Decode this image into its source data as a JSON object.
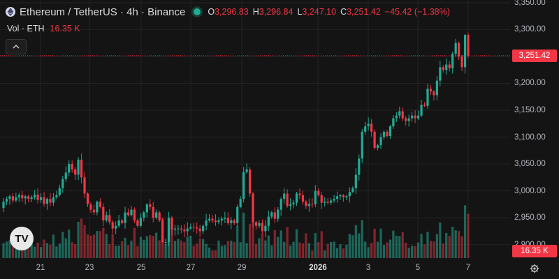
{
  "header": {
    "symbol_title": "Ethereum / TetherUS · 4h · Binance",
    "ohlc": [
      {
        "key": "O",
        "value": "3,296.83"
      },
      {
        "key": "H",
        "value": "3,296.84"
      },
      {
        "key": "L",
        "value": "3,247.10"
      },
      {
        "key": "C",
        "value": "3,251.42"
      }
    ],
    "change": "−45.42 (−1.38%)"
  },
  "volume_legend": {
    "label": "Vol · ETH",
    "value": "16.35 K"
  },
  "colors": {
    "up": "#22ab94",
    "down": "#f23645",
    "background": "#141414",
    "grid": "#232323"
  },
  "icons": {
    "symbol": "ethereum-icon",
    "status": "market-status-dot",
    "collapse": "chevron-up-icon",
    "logo": "tradingview-logo",
    "settings": "gear-icon"
  },
  "logo_text": "TV",
  "price_axis": {
    "ticks": [
      "3,350.00",
      "3,300.00",
      "3,250.00",
      "3,200.00",
      "3,150.00",
      "3,100.00",
      "3,050.00",
      "3,000.00",
      "2,950.00",
      "2,900.00"
    ],
    "current_price": "3,251.42",
    "current_volume": "16.35 K"
  },
  "time_axis": {
    "labels": [
      "21",
      "23",
      "25",
      "27",
      "29",
      "2026",
      "3",
      "5",
      "7"
    ]
  },
  "chart_data": {
    "type": "candlestick",
    "symbol": "ETHUSDT",
    "interval": "4h",
    "ylim": [
      2875,
      3355
    ],
    "last_price": 3251.42,
    "candles_close": [
      2980,
      2985,
      2990,
      2982,
      2988,
      2992,
      2986,
      2990,
      2985,
      2988,
      2993,
      2983,
      2988,
      2976,
      2985,
      2978,
      2988,
      2992,
      3005,
      3022,
      3034,
      3050,
      3040,
      3030,
      3058,
      3025,
      2995,
      2975,
      2965,
      2960,
      2980,
      2970,
      2945,
      2955,
      2942,
      2930,
      2935,
      2945,
      2940,
      2960,
      2955,
      2965,
      2945,
      2935,
      2950,
      2960,
      2975,
      2970,
      2950,
      2960,
      2945,
      2905,
      2905,
      2950,
      2928,
      2930,
      2930,
      2928,
      2925,
      2930,
      2933,
      2932,
      2930,
      2925,
      2935,
      2945,
      2948,
      2945,
      2942,
      2945,
      2948,
      2950,
      2940,
      2945,
      2940,
      2970,
      2985,
      3035,
      3040,
      2995,
      2942,
      2935,
      2940,
      2925,
      2935,
      2952,
      2960,
      2948,
      2965,
      2985,
      2995,
      2972,
      2975,
      2978,
      2995,
      2992,
      2980,
      2972,
      2976,
      2975,
      3000,
      2992,
      2978,
      2980,
      2978,
      2982,
      2985,
      2990,
      2992,
      2988,
      2990,
      2998,
      3005,
      3030,
      3060,
      3110,
      3120,
      3125,
      3110,
      3080,
      3085,
      3100,
      3110,
      3102,
      3120,
      3135,
      3140,
      3148,
      3135,
      3130,
      3135,
      3140,
      3135,
      3140,
      3160,
      3158,
      3190,
      3185,
      3178,
      3205,
      3230,
      3225,
      3235,
      3228,
      3255,
      3275,
      3250,
      3230,
      3290,
      3251.42
    ],
    "volume_unit": "ETH"
  }
}
